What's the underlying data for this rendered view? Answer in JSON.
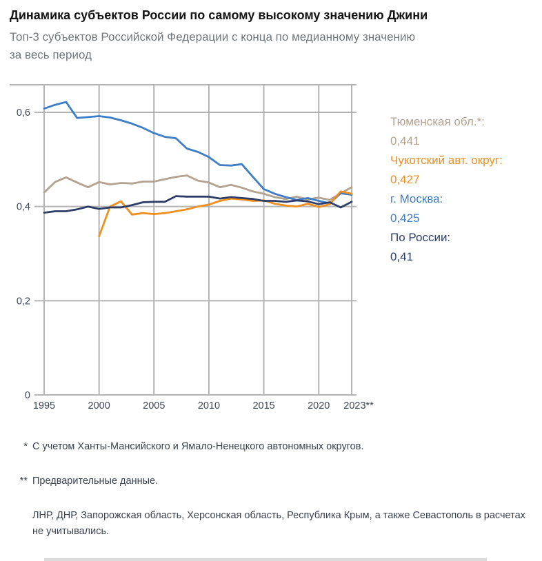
{
  "header": {
    "title": "Динамика субъектов России по самому высокому значению Джини",
    "subtitle": "Топ-3 субъектов Российской Федерации с конца по медианному значению\nза весь период"
  },
  "legend": {
    "items": [
      {
        "label": "Тюменская обл.*:",
        "value": "0,441",
        "color": "#b3a28e"
      },
      {
        "label": "Чукотский авт. округ:",
        "value": "0,427",
        "color": "#f08f1f"
      },
      {
        "label": "г. Москва:",
        "value": "0,425",
        "color": "#3e7dc7"
      },
      {
        "label": "По России:",
        "value": "0,41",
        "color": "#2c3d68"
      }
    ]
  },
  "footnotes": [
    {
      "marker": "*",
      "text": "С учетом Ханты-Мансийского и Ямало-Ненецкого автономных округов."
    },
    {
      "marker": "**",
      "text": "Предварительные данные."
    },
    {
      "marker": "",
      "text": "ЛНР, ДНР, Запорожская область, Херсонская область, Республика Крым, а также Севасто­поль в расчетах не учитывались."
    }
  ],
  "chart_data": {
    "type": "line",
    "title": "Динамика субъектов России по самому высокому значению Джини",
    "subtitle": "Топ-3 субъектов Российской Федерации с конца по медианному значению за весь период",
    "grid": true,
    "grid_color": "#b4b4b4",
    "legend_position": "right",
    "x_axis": {
      "ticks": [
        1995,
        2000,
        2005,
        2010,
        2015,
        2020,
        2023
      ],
      "tick_labels": [
        "1995",
        "2000",
        "2005",
        "2010",
        "2015",
        "2020",
        "2023**"
      ],
      "range": [
        1994,
        2023.5
      ]
    },
    "y_axis": {
      "ticks": [
        0,
        0.2,
        0.4,
        0.6
      ],
      "tick_labels": [
        "0",
        "0,2",
        "0,4",
        "0,6"
      ],
      "range": [
        0,
        0.66
      ]
    },
    "series": [
      {
        "id": "tyumen",
        "name": "Тюменская обл.*",
        "color": "#b3a28e",
        "x_start": 1995,
        "final_value": 0.441,
        "values": [
          0.43,
          0.452,
          0.462,
          0.451,
          0.441,
          0.452,
          0.447,
          0.45,
          0.449,
          0.453,
          0.453,
          0.458,
          0.463,
          0.466,
          0.455,
          0.451,
          0.441,
          0.446,
          0.44,
          0.432,
          0.427,
          0.42,
          0.416,
          0.421,
          0.415,
          0.419,
          0.414,
          0.428,
          0.441
        ]
      },
      {
        "id": "moscow",
        "name": "г. Москва",
        "color": "#3e7dc7",
        "x_start": 1995,
        "final_value": 0.425,
        "values": [
          0.608,
          0.616,
          0.622,
          0.588,
          0.59,
          0.592,
          0.589,
          0.583,
          0.576,
          0.567,
          0.556,
          0.548,
          0.545,
          0.523,
          0.516,
          0.505,
          0.488,
          0.487,
          0.49,
          0.463,
          0.437,
          0.427,
          0.42,
          0.414,
          0.418,
          0.412,
          0.407,
          0.428,
          0.425
        ]
      },
      {
        "id": "chukotka",
        "name": "Чукотский авт. округ",
        "color": "#f08f1f",
        "x_start": 2000,
        "final_value": 0.427,
        "values": [
          0.337,
          0.4,
          0.411,
          0.383,
          0.386,
          0.384,
          0.386,
          0.39,
          0.394,
          0.4,
          0.404,
          0.412,
          0.417,
          0.415,
          0.412,
          0.413,
          0.406,
          0.402,
          0.4,
          0.406,
          0.399,
          0.405,
          0.432,
          0.427
        ]
      },
      {
        "id": "russia",
        "name": "По России",
        "color": "#2c3d68",
        "x_start": 1995,
        "final_value": 0.41,
        "values": [
          0.387,
          0.39,
          0.39,
          0.394,
          0.4,
          0.395,
          0.398,
          0.398,
          0.403,
          0.409,
          0.41,
          0.41,
          0.422,
          0.421,
          0.421,
          0.421,
          0.417,
          0.42,
          0.418,
          0.416,
          0.412,
          0.412,
          0.41,
          0.413,
          0.411,
          0.405,
          0.409,
          0.398,
          0.41
        ]
      }
    ]
  }
}
